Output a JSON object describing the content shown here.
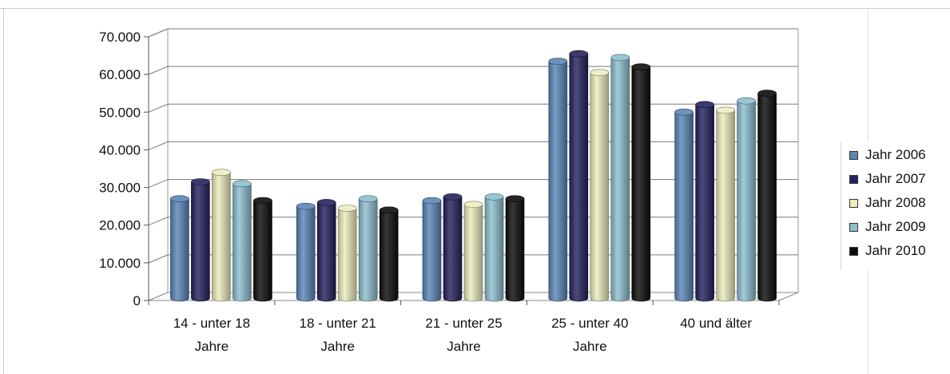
{
  "chart_data": {
    "type": "bar",
    "categories": [
      [
        "14 - unter 18",
        "Jahre"
      ],
      [
        "18 - unter 21",
        "Jahre"
      ],
      [
        "21 - unter 25",
        "Jahre"
      ],
      [
        "25 - unter 40",
        "Jahre"
      ],
      [
        "40 und älter"
      ]
    ],
    "series": [
      {
        "name": "Jahr 2006",
        "color": "#5b86b8",
        "values": [
          27000,
          25000,
          26500,
          63500,
          50000
        ]
      },
      {
        "name": "Jahr 2007",
        "color": "#25235e",
        "values": [
          31500,
          26000,
          27500,
          65500,
          52000
        ]
      },
      {
        "name": "Jahr 2008",
        "color": "#ecedbc",
        "values": [
          34000,
          24500,
          25500,
          60500,
          50500
        ]
      },
      {
        "name": "Jahr 2009",
        "color": "#8ec0d0",
        "values": [
          31000,
          27000,
          27500,
          64500,
          53000
        ]
      },
      {
        "name": "Jahr 2010",
        "color": "#0d0d0d",
        "values": [
          26500,
          24000,
          27000,
          62000,
          55000
        ]
      }
    ],
    "ylim": [
      0,
      70000
    ],
    "yticks": [
      "0",
      "10.000",
      "20.000",
      "30.000",
      "40.000",
      "50.000",
      "60.000",
      "70.000"
    ],
    "grid": true,
    "legend_position": "right"
  }
}
